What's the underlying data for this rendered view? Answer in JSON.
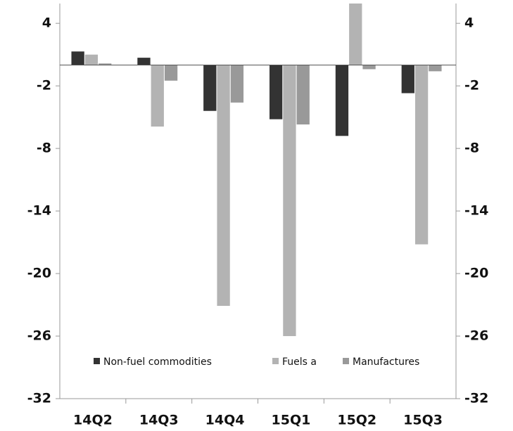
{
  "chart_data": {
    "type": "bar",
    "categories": [
      "14Q2",
      "14Q3",
      "14Q4",
      "15Q1",
      "15Q2",
      "15Q3"
    ],
    "series": [
      {
        "name": "Non-fuel commodities",
        "color": "#333333",
        "values": [
          1.3,
          0.7,
          -4.4,
          -5.2,
          -6.8,
          -2.7
        ]
      },
      {
        "name": "Fuels a",
        "color": "#b3b3b3",
        "values": [
          1.0,
          -5.9,
          -23.1,
          -26.0,
          8,
          -17.2
        ]
      },
      {
        "name": "Manufactures",
        "color": "#999999",
        "values": [
          0.15,
          -1.5,
          -3.6,
          -5.7,
          -0.4,
          -0.6
        ]
      }
    ],
    "ylim": [
      -32,
      5.9
    ],
    "yticks": [
      4,
      -2,
      -8,
      -14,
      -20,
      -26,
      -32
    ],
    "y2lim": [
      -32,
      5.9
    ],
    "y2ticks": [
      4,
      -2,
      -8,
      -14,
      -20,
      -26,
      -32
    ],
    "legend": "bottom"
  }
}
